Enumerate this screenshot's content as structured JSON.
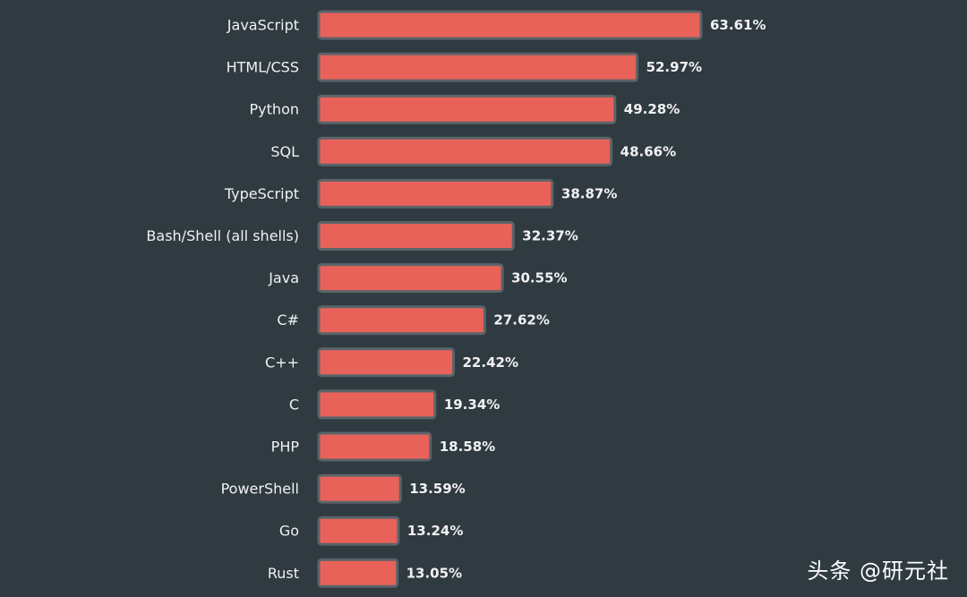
{
  "watermark": "头条 @研元社",
  "colors": {
    "background": "#2f3a41",
    "bar_fill": "#e8625a",
    "bar_border": "#5a6469",
    "text": "#f2f2f2"
  },
  "chart_data": {
    "type": "bar",
    "orientation": "horizontal",
    "title": "",
    "xlabel": "",
    "ylabel": "",
    "grid": false,
    "xlim": [
      0,
      63.61
    ],
    "unit": "%",
    "categories": [
      "JavaScript",
      "HTML/CSS",
      "Python",
      "SQL",
      "TypeScript",
      "Bash/Shell (all shells)",
      "Java",
      "C#",
      "C++",
      "C",
      "PHP",
      "PowerShell",
      "Go",
      "Rust"
    ],
    "values": [
      63.61,
      52.97,
      49.28,
      48.66,
      38.87,
      32.37,
      30.55,
      27.62,
      22.42,
      19.34,
      18.58,
      13.59,
      13.24,
      13.05
    ],
    "value_labels": [
      "63.61%",
      "52.97%",
      "49.28%",
      "48.66%",
      "38.87%",
      "32.37%",
      "30.55%",
      "27.62%",
      "22.42%",
      "19.34%",
      "18.58%",
      "13.59%",
      "13.24%",
      "13.05%"
    ]
  }
}
